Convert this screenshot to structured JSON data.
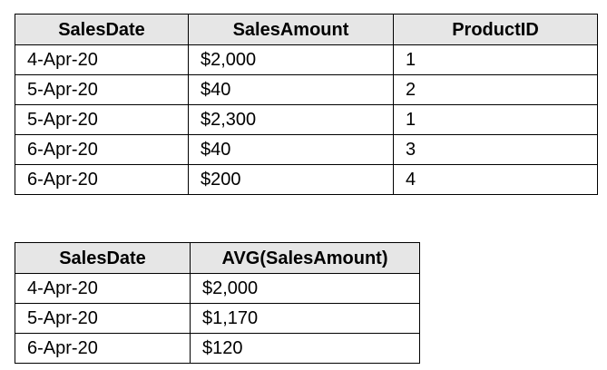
{
  "sales_table": {
    "headers": [
      "SalesDate",
      "SalesAmount",
      "ProductID"
    ],
    "rows": [
      [
        "4-Apr-20",
        "$2,000",
        "1"
      ],
      [
        "5-Apr-20",
        "$40",
        "2"
      ],
      [
        "5-Apr-20",
        "$2,300",
        "1"
      ],
      [
        "6-Apr-20",
        "$40",
        "3"
      ],
      [
        "6-Apr-20",
        "$200",
        "4"
      ]
    ]
  },
  "avg_table": {
    "headers": [
      "SalesDate",
      "AVG(SalesAmount)"
    ],
    "rows": [
      [
        "4-Apr-20",
        "$2,000"
      ],
      [
        "5-Apr-20",
        "$1,170"
      ],
      [
        "6-Apr-20",
        "$120"
      ]
    ]
  },
  "colors": {
    "header_background": "#e6e6e6",
    "border": "#000000"
  }
}
